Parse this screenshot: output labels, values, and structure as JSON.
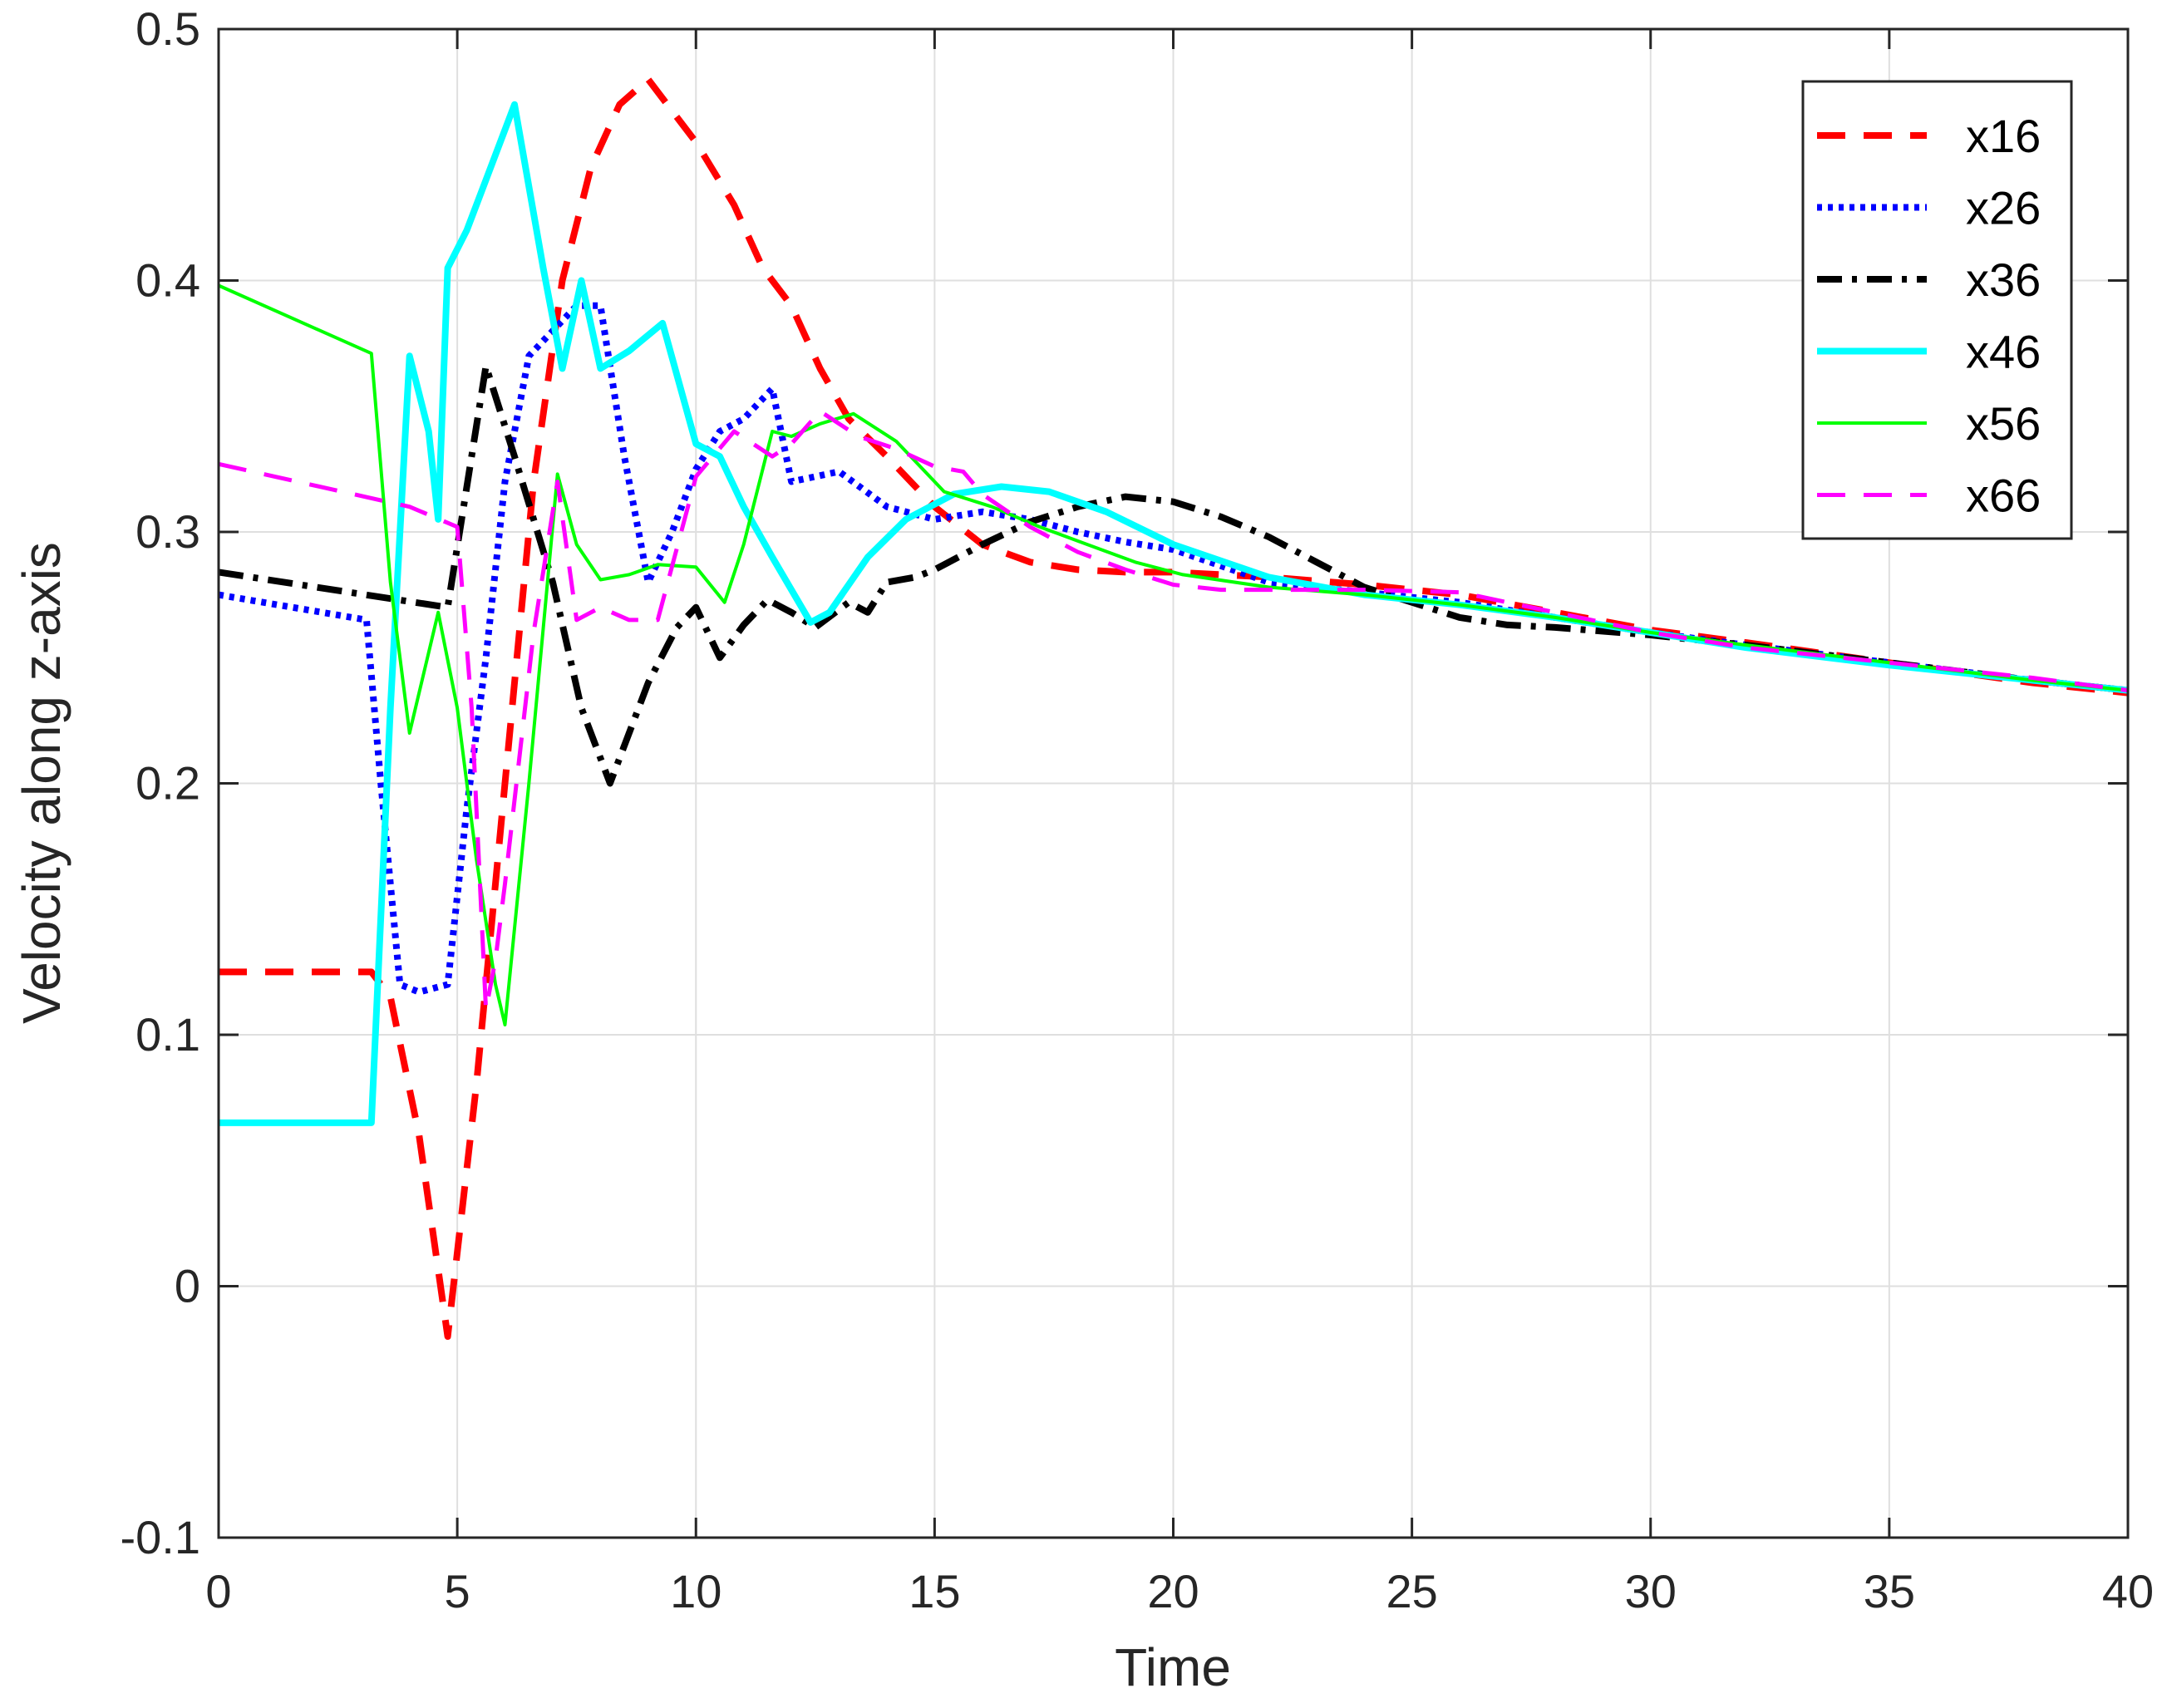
{
  "chart_data": {
    "type": "line",
    "xlabel": "Time",
    "ylabel": "Velocity along z-axis",
    "xlim": [
      0,
      40
    ],
    "ylim": [
      -0.1,
      0.5
    ],
    "xticks": [
      0,
      5,
      10,
      15,
      20,
      25,
      30,
      35,
      40
    ],
    "xtick_labels": [
      "0",
      "5",
      "10",
      "15",
      "20",
      "25",
      "30",
      "35",
      "40"
    ],
    "yticks": [
      -0.1,
      0,
      0.1,
      0.2,
      0.3,
      0.4,
      0.5
    ],
    "ytick_labels": [
      "-0.1",
      "0",
      "0.1",
      "0.2",
      "0.3",
      "0.4",
      "0.5"
    ],
    "grid": true,
    "legend_position": "top-right",
    "series": [
      {
        "name": "x16",
        "color": "#ff0000",
        "style": "dashed",
        "x": [
          0,
          3.2,
          3.6,
          4.2,
          4.8,
          5.4,
          6.0,
          6.6,
          7.2,
          7.8,
          8.4,
          9.0,
          9.6,
          10.0,
          10.8,
          11.4,
          12.0,
          12.6,
          13.2,
          14.0,
          15.0,
          16.0,
          17.0,
          18.0,
          19.0,
          20.0,
          22.0,
          24.0,
          26.0,
          28.0,
          30.0,
          32.0,
          35.0,
          38.0,
          40.0
        ],
        "y": [
          0.125,
          0.125,
          0.115,
          0.06,
          -0.02,
          0.08,
          0.2,
          0.32,
          0.4,
          0.445,
          0.47,
          0.48,
          0.465,
          0.455,
          0.43,
          0.405,
          0.39,
          0.365,
          0.345,
          0.33,
          0.31,
          0.295,
          0.288,
          0.285,
          0.284,
          0.284,
          0.282,
          0.279,
          0.275,
          0.268,
          0.261,
          0.256,
          0.248,
          0.24,
          0.236
        ]
      },
      {
        "name": "x26",
        "color": "#0000ff",
        "style": "dotted",
        "x": [
          0,
          3.1,
          3.4,
          3.8,
          4.2,
          4.8,
          5.2,
          5.6,
          6.0,
          6.5,
          7.0,
          7.5,
          8.0,
          8.5,
          9.0,
          9.5,
          10.0,
          10.5,
          11.0,
          11.6,
          12.0,
          13.0,
          14.0,
          15.0,
          16.0,
          17.0,
          18.0,
          19.0,
          20.0,
          22.0,
          24.0,
          26.0,
          28.0,
          30.0,
          32.0,
          35.0,
          38.0,
          40.0
        ],
        "y": [
          0.275,
          0.265,
          0.2,
          0.12,
          0.117,
          0.12,
          0.19,
          0.25,
          0.32,
          0.37,
          0.38,
          0.39,
          0.39,
          0.33,
          0.28,
          0.3,
          0.325,
          0.34,
          0.345,
          0.357,
          0.32,
          0.324,
          0.31,
          0.305,
          0.308,
          0.305,
          0.3,
          0.296,
          0.293,
          0.28,
          0.276,
          0.272,
          0.266,
          0.26,
          0.255,
          0.248,
          0.241,
          0.237
        ]
      },
      {
        "name": "x36",
        "color": "#000000",
        "style": "dashdot",
        "x": [
          0,
          4.8,
          5.6,
          6.2,
          7.0,
          7.6,
          8.2,
          9.0,
          9.6,
          10.0,
          10.5,
          11.0,
          11.5,
          12.0,
          12.5,
          13.2,
          13.6,
          14.0,
          14.6,
          15.0,
          16.0,
          17.0,
          18.0,
          19.0,
          20.0,
          21.0,
          22.0,
          23.0,
          24.0,
          25.0,
          26.0,
          27.0,
          28.0,
          30.0,
          32.0,
          35.0,
          38.0,
          40.0
        ],
        "y": [
          0.284,
          0.27,
          0.366,
          0.33,
          0.28,
          0.23,
          0.2,
          0.24,
          0.262,
          0.27,
          0.25,
          0.263,
          0.273,
          0.268,
          0.262,
          0.272,
          0.268,
          0.28,
          0.282,
          0.285,
          0.295,
          0.304,
          0.31,
          0.314,
          0.312,
          0.306,
          0.298,
          0.288,
          0.278,
          0.272,
          0.266,
          0.263,
          0.262,
          0.259,
          0.255,
          0.248,
          0.241,
          0.237
        ]
      },
      {
        "name": "x46",
        "color": "#00ffff",
        "style": "solid",
        "x": [
          0,
          3.2,
          3.6,
          4.0,
          4.4,
          4.6,
          4.8,
          5.2,
          5.6,
          6.2,
          6.8,
          7.2,
          7.6,
          8.0,
          8.6,
          9.3,
          10.0,
          10.5,
          11.0,
          11.6,
          12.4,
          12.8,
          13.6,
          14.4,
          15.4,
          16.4,
          17.4,
          18.6,
          20.0,
          22.0,
          24.0,
          26.0,
          28.0,
          30.0,
          32.0,
          35.0,
          38.0,
          40.0
        ],
        "y": [
          0.065,
          0.065,
          0.23,
          0.37,
          0.34,
          0.305,
          0.405,
          0.42,
          0.44,
          0.47,
          0.405,
          0.365,
          0.4,
          0.365,
          0.372,
          0.383,
          0.335,
          0.33,
          0.31,
          0.29,
          0.264,
          0.268,
          0.29,
          0.305,
          0.315,
          0.318,
          0.316,
          0.308,
          0.295,
          0.282,
          0.275,
          0.271,
          0.266,
          0.26,
          0.254,
          0.247,
          0.241,
          0.237
        ]
      },
      {
        "name": "x56",
        "color": "#00ff00",
        "style": "solid",
        "x": [
          0,
          3.2,
          3.6,
          4.0,
          4.6,
          5.0,
          5.4,
          5.8,
          6.0,
          6.5,
          7.1,
          7.5,
          8.0,
          8.6,
          9.2,
          10.0,
          10.6,
          11.0,
          11.6,
          12.0,
          12.6,
          13.3,
          14.2,
          15.2,
          16.2,
          17.2,
          18.2,
          19.2,
          20.2,
          22.0,
          24.0,
          26.0,
          28.0,
          30.0,
          32.0,
          35.0,
          38.0,
          40.0
        ],
        "y": [
          0.398,
          0.371,
          0.28,
          0.22,
          0.268,
          0.23,
          0.17,
          0.12,
          0.104,
          0.2,
          0.323,
          0.295,
          0.281,
          0.283,
          0.287,
          0.286,
          0.272,
          0.295,
          0.34,
          0.338,
          0.343,
          0.347,
          0.336,
          0.316,
          0.31,
          0.302,
          0.295,
          0.288,
          0.283,
          0.278,
          0.275,
          0.271,
          0.266,
          0.26,
          0.255,
          0.248,
          0.241,
          0.237
        ]
      },
      {
        "name": "x66",
        "color": "#ff00ff",
        "style": "dashed",
        "x": [
          0,
          4.0,
          5.0,
          5.3,
          5.6,
          5.8,
          6.0,
          6.6,
          7.1,
          7.5,
          8.0,
          8.6,
          9.2,
          10.0,
          10.8,
          11.6,
          12.0,
          12.6,
          13.4,
          14.2,
          15.0,
          15.6,
          16.0,
          17.0,
          18.0,
          19.0,
          20.0,
          21.0,
          22.0,
          24.0,
          26.0,
          28.0,
          30.0,
          32.0,
          35.0,
          38.0,
          40.0
        ],
        "y": [
          0.327,
          0.31,
          0.302,
          0.23,
          0.11,
          0.13,
          0.16,
          0.26,
          0.32,
          0.265,
          0.27,
          0.265,
          0.265,
          0.322,
          0.34,
          0.33,
          0.335,
          0.348,
          0.338,
          0.333,
          0.326,
          0.324,
          0.315,
          0.302,
          0.292,
          0.285,
          0.279,
          0.277,
          0.277,
          0.277,
          0.276,
          0.268,
          0.26,
          0.254,
          0.248,
          0.242,
          0.237
        ]
      }
    ]
  }
}
